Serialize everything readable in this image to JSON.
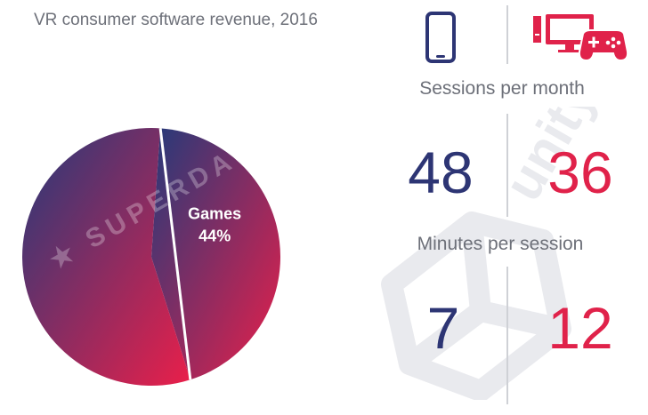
{
  "chart_data": {
    "type": "pie",
    "title": "VR consumer software revenue, 2016",
    "slices": [
      {
        "label": "Games",
        "value": 44,
        "display": "44%"
      },
      {
        "label": "",
        "value": 56,
        "display": ""
      }
    ],
    "colors": {
      "start": "#243a7a",
      "end": "#ea1f4a"
    }
  },
  "watermarks": {
    "superdata": "SUPERDATA",
    "unity": "unity"
  },
  "comparison": {
    "icons": {
      "mobile": "smartphone-icon",
      "pc": "desktop-gamepad-icon"
    },
    "metrics": [
      {
        "label": "Sessions per month",
        "mobile": "48",
        "pc": "36"
      },
      {
        "label": "Minutes per session",
        "mobile": "7",
        "pc": "12"
      }
    ],
    "colors": {
      "mobile": "#2d3574",
      "pc": "#e0224a",
      "label": "#6d7079",
      "divider": "#cfd1d6"
    }
  }
}
